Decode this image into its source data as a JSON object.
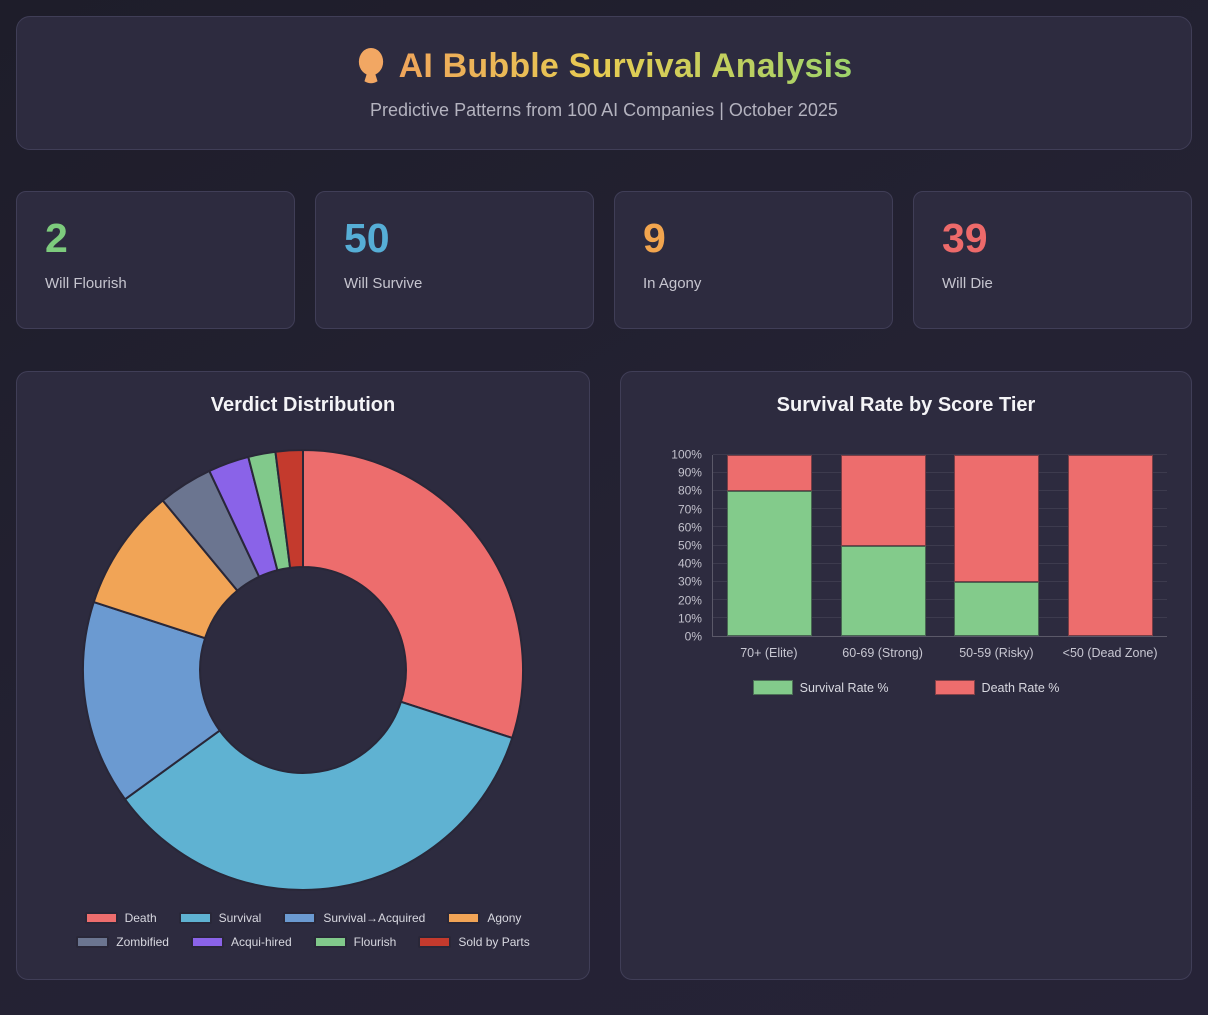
{
  "header": {
    "title": "AI Bubble Survival Analysis",
    "subtitle": "Predictive Patterns from 100 AI Companies | October 2025",
    "icon": "balloon-icon",
    "icon_color": "#f2a763",
    "title_gradient": [
      "#efa55b",
      "#e6cc52",
      "#9ed36b"
    ]
  },
  "stats": [
    {
      "value": "2",
      "label": "Will Flourish",
      "color": "#7dcb7d"
    },
    {
      "value": "50",
      "label": "Will Survive",
      "color": "#56aed6"
    },
    {
      "value": "9",
      "label": "In Agony",
      "color": "#f2a54e"
    },
    {
      "value": "39",
      "label": "Will Die",
      "color": "#ed6a6a"
    }
  ],
  "chart_data": [
    {
      "type": "pie",
      "title": "Verdict Distribution",
      "labels": [
        "Death",
        "Survival",
        "Survival→Acquired",
        "Agony",
        "Zombified",
        "Acqui-hired",
        "Flourish",
        "Sold by Parts"
      ],
      "values": [
        30,
        35,
        15,
        9,
        4,
        3,
        2,
        2
      ],
      "colors": [
        "#ed6d6d",
        "#5fb2d2",
        "#6b9ad1",
        "#f1a456",
        "#6b7590",
        "#8a63e8",
        "#81c98b",
        "#c43a2d"
      ],
      "donut_cutout": 0.468,
      "start_angle_deg": 0,
      "direction": "clockwise",
      "slice_border_color": "#292738",
      "legend_position": "bottom",
      "legend_rows": 2
    },
    {
      "type": "bar",
      "title": "Survival Rate by Score Tier",
      "stacked": true,
      "categories": [
        "70+ (Elite)",
        "60-69 (Strong)",
        "50-59 (Risky)",
        "<50 (Dead Zone)"
      ],
      "series": [
        {
          "name": "Survival Rate %",
          "color": "#83cb8b",
          "values": [
            80,
            50,
            30,
            0
          ]
        },
        {
          "name": "Death Rate %",
          "color": "#ed6d6d",
          "values": [
            20,
            50,
            70,
            100
          ]
        }
      ],
      "ylim": [
        0,
        100
      ],
      "yticks": [
        "0%",
        "10%",
        "20%",
        "30%",
        "40%",
        "50%",
        "60%",
        "70%",
        "80%",
        "90%",
        "100%"
      ],
      "grid": true,
      "legend_position": "bottom"
    }
  ]
}
